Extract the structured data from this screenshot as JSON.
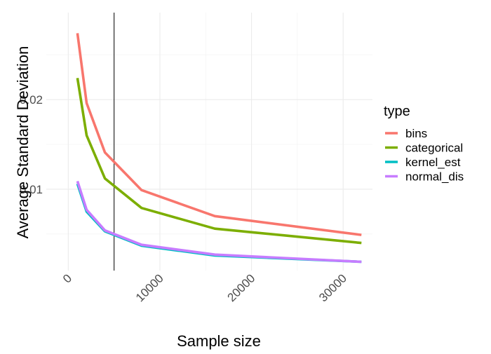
{
  "chart_data": {
    "type": "line",
    "xlabel": "Sample size",
    "ylabel": "Average Standard Deviation",
    "xlim": [
      -2400,
      33200
    ],
    "ylim": [
      0.00092,
      0.0297
    ],
    "x_ticks": [
      0,
      10000,
      20000,
      30000
    ],
    "x_tick_labels": [
      "0",
      "10000",
      "20000",
      "30000"
    ],
    "y_ticks": [
      0.01,
      0.02
    ],
    "y_tick_labels": [
      "0.01",
      "0.02"
    ],
    "grid": true,
    "legend_title": "type",
    "legend_position": "right",
    "vline_x": 5000,
    "x": [
      1000,
      2000,
      4000,
      8000,
      16000,
      32000
    ],
    "series": [
      {
        "name": "bins",
        "color": "#F8766D",
        "values": [
          0.0274,
          0.0196,
          0.0141,
          0.0099,
          0.007,
          0.0049
        ]
      },
      {
        "name": "categorical",
        "color": "#7CAE00",
        "values": [
          0.0224,
          0.016,
          0.0112,
          0.0079,
          0.0056,
          0.004
        ]
      },
      {
        "name": "kernel_est",
        "color": "#00BFC4",
        "values": [
          0.0106,
          0.0075,
          0.0053,
          0.0037,
          0.0026,
          0.0019
        ]
      },
      {
        "name": "normal_dis",
        "color": "#C77CFF",
        "values": [
          0.0109,
          0.0077,
          0.0054,
          0.0038,
          0.0027,
          0.0019
        ]
      }
    ]
  }
}
